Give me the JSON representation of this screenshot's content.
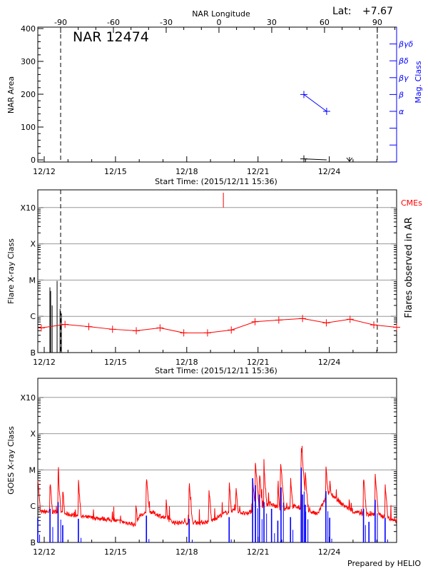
{
  "footer": "Prepared by HELIO",
  "colors": {
    "axis": "#000000",
    "mag": "#0000ff",
    "flare_rate": "#ff0000",
    "goes_long": "#ff0000",
    "goes_short": "#0000ff",
    "grid": "#999999"
  },
  "chart_data": [
    {
      "type": "line",
      "title": "NAR 12474",
      "top_axis_label": "NAR Longitude",
      "top_ticks": [
        "-90",
        "-60",
        "-30",
        "0",
        "30",
        "60",
        "90"
      ],
      "lat_label": "Lat:",
      "lat_value": "+7.67",
      "xlabel": "Start Time: (2015/12/11 15:36)",
      "x_ticks": [
        "12/12",
        "12/15",
        "12/18",
        "12/21",
        "12/24"
      ],
      "ylabel": "NAR Area",
      "ylim": [
        0,
        400
      ],
      "y_ticks": [
        "0",
        "100",
        "200",
        "300",
        "400"
      ],
      "y2label": "Mag. Class",
      "y2_ticks": [
        "α",
        "β",
        "βγ",
        "βδ",
        "βγδ"
      ],
      "limb_times": [
        "12/12 16:35",
        "12/26 00:30"
      ],
      "area_series": [
        {
          "t": "12/22 22:20",
          "v": 3
        },
        {
          "t": "12/23 21:20",
          "v": 0
        }
      ],
      "area_zero_marker": "12/24 20:25",
      "mag_series": [
        {
          "t": "12/22 22:20",
          "class": "β"
        },
        {
          "t": "12/23 21:20",
          "class": "α"
        }
      ]
    },
    {
      "type": "bar",
      "xlabel": "Start Time: (2015/12/11 15:36)",
      "x_ticks": [
        "12/12",
        "12/15",
        "12/18",
        "12/21",
        "12/24"
      ],
      "ylabel": "Flare X-ray Class",
      "y_scale": "log",
      "ylim": [
        1e-07,
        0.001
      ],
      "y_ticks": [
        "B",
        "C",
        "M",
        "X",
        "X10"
      ],
      "y2label": "Flares observed in AR",
      "cme_label": "CMEs",
      "grid": true,
      "limb_times": [
        "12/12 16:35",
        "12/26 00:30"
      ],
      "flares": [
        {
          "t": "12/12 05:45",
          "v": 6.3e-06
        },
        {
          "t": "12/12 06:30",
          "v": 5e-06
        },
        {
          "t": "12/12 08:00",
          "v": 2e-06
        },
        {
          "t": "12/12 13:00",
          "v": 9.5e-06
        },
        {
          "t": "12/12 16:00",
          "v": 1.6e-06
        },
        {
          "t": "12/12 17:20",
          "v": 1.2e-06
        }
      ],
      "cmes": [
        "12/19 13:00"
      ],
      "daily_series": [
        {
          "t": "12/11 21:00",
          "v": 4.8e-07
        },
        {
          "t": "12/12 21:00",
          "v": 6e-07
        },
        {
          "t": "12/13 21:00",
          "v": 5.2e-07
        },
        {
          "t": "12/14 21:00",
          "v": 4.4e-07
        },
        {
          "t": "12/15 21:00",
          "v": 4e-07
        },
        {
          "t": "12/16 21:00",
          "v": 4.8e-07
        },
        {
          "t": "12/17 21:00",
          "v": 3.5e-07
        },
        {
          "t": "12/18 21:00",
          "v": 3.5e-07
        },
        {
          "t": "12/19 21:00",
          "v": 4.2e-07
        },
        {
          "t": "12/20 21:00",
          "v": 7.1e-07
        },
        {
          "t": "12/21 21:00",
          "v": 7.9e-07
        },
        {
          "t": "12/22 21:00",
          "v": 8.7e-07
        },
        {
          "t": "12/23 21:00",
          "v": 6.6e-07
        },
        {
          "t": "12/24 21:00",
          "v": 8.3e-07
        },
        {
          "t": "12/25 21:00",
          "v": 5.8e-07
        },
        {
          "t": "12/26 21:00",
          "v": 5e-07
        }
      ]
    },
    {
      "type": "line",
      "x_ticks": [
        "12/12",
        "12/15",
        "12/18",
        "12/21",
        "12/24"
      ],
      "ylabel": "GOES X-ray Class",
      "y_scale": "log",
      "ylim": [
        1e-07,
        0.001
      ],
      "y_ticks": [
        "B",
        "C",
        "M",
        "X",
        "X10"
      ],
      "grid": true,
      "long_channel_background": [
        {
          "t": "12/11 16:00",
          "v": 7e-07
        },
        {
          "t": "12/12 12:00",
          "v": 7e-07
        },
        {
          "t": "12/13 00:00",
          "v": 6e-07
        },
        {
          "t": "12/13 18:00",
          "v": 5e-07
        },
        {
          "t": "12/14 12:00",
          "v": 4.5e-07
        },
        {
          "t": "12/15 12:00",
          "v": 3.5e-07
        },
        {
          "t": "12/15 21:00",
          "v": 3e-07
        },
        {
          "t": "12/16 00:00",
          "v": 5.5e-07
        },
        {
          "t": "12/16 12:00",
          "v": 7e-07
        },
        {
          "t": "12/17 00:00",
          "v": 5e-07
        },
        {
          "t": "12/17 12:00",
          "v": 3.5e-07
        },
        {
          "t": "12/18 12:00",
          "v": 3.5e-07
        },
        {
          "t": "12/19 00:00",
          "v": 3.8e-07
        },
        {
          "t": "12/19 12:00",
          "v": 6e-07
        },
        {
          "t": "12/20 00:00",
          "v": 8e-07
        },
        {
          "t": "12/20 12:00",
          "v": 6e-07
        },
        {
          "t": "12/21 00:00",
          "v": 9e-07
        },
        {
          "t": "12/21 12:00",
          "v": 1.2e-06
        },
        {
          "t": "12/22 00:00",
          "v": 8e-07
        },
        {
          "t": "12/22 12:00",
          "v": 1e-06
        },
        {
          "t": "12/23 00:00",
          "v": 8e-07
        },
        {
          "t": "12/23 12:00",
          "v": 6e-07
        },
        {
          "t": "12/24 00:00",
          "v": 2.5e-06
        },
        {
          "t": "12/24 12:00",
          "v": 1.2e-06
        },
        {
          "t": "12/25 00:00",
          "v": 7e-07
        },
        {
          "t": "12/25 12:00",
          "v": 6e-07
        },
        {
          "t": "12/26 00:00",
          "v": 6e-07
        },
        {
          "t": "12/26 20:00",
          "v": 4e-07
        }
      ],
      "long_channel_peaks": [
        {
          "t": "12/11 17:30",
          "v": 5.9e-06
        },
        {
          "t": "12/12 05:50",
          "v": 5e-06
        },
        {
          "t": "12/12 14:00",
          "v": 8e-06
        },
        {
          "t": "12/12 18:40",
          "v": 3e-06
        },
        {
          "t": "12/13 10:30",
          "v": 5e-06
        },
        {
          "t": "12/15 20:40",
          "v": 1.3e-06
        },
        {
          "t": "12/16 07:15",
          "v": 7e-06
        },
        {
          "t": "12/17 03:15",
          "v": 1.4e-06
        },
        {
          "t": "12/18 02:25",
          "v": 4.9e-06
        },
        {
          "t": "12/18 22:20",
          "v": 3.3e-06
        },
        {
          "t": "12/19 18:50",
          "v": 4.7e-06
        },
        {
          "t": "12/20 01:40",
          "v": 4e-06
        },
        {
          "t": "12/20 18:35",
          "v": 6e-06
        },
        {
          "t": "12/20 21:20",
          "v": 1.7e-05
        },
        {
          "t": "12/21 01:25",
          "v": 9e-06
        },
        {
          "t": "12/21 06:00",
          "v": 1.1e-05
        },
        {
          "t": "12/21 20:00",
          "v": 3.5e-06
        },
        {
          "t": "12/21 22:45",
          "v": 1.8e-05
        },
        {
          "t": "12/22 08:50",
          "v": 6.5e-06
        },
        {
          "t": "12/22 19:40",
          "v": 5.1e-05
        },
        {
          "t": "12/22 23:45",
          "v": 8e-06
        },
        {
          "t": "12/23 20:35",
          "v": 1.25e-05
        },
        {
          "t": "12/24 00:25",
          "v": 6e-06
        },
        {
          "t": "12/25 10:35",
          "v": 7e-06
        },
        {
          "t": "12/25 22:20",
          "v": 8e-06
        },
        {
          "t": "12/26 08:25",
          "v": 4.3e-06
        }
      ],
      "short_channel_peaks": [
        {
          "t": "12/11 17:30",
          "v": 4.8e-07
        },
        {
          "t": "12/12 05:50",
          "v": 8.5e-07
        },
        {
          "t": "12/12 14:00",
          "v": 1.3e-06
        },
        {
          "t": "12/12 18:40",
          "v": 3e-07
        },
        {
          "t": "12/13 10:30",
          "v": 4.5e-07
        },
        {
          "t": "12/16 07:15",
          "v": 5.5e-07
        },
        {
          "t": "12/18 02:25",
          "v": 4.5e-07
        },
        {
          "t": "12/19 18:50",
          "v": 5e-07
        },
        {
          "t": "12/20 18:35",
          "v": 5.9e-06
        },
        {
          "t": "12/20 21:20",
          "v": 3.8e-06
        },
        {
          "t": "12/21 01:25",
          "v": 2.1e-06
        },
        {
          "t": "12/21 06:00",
          "v": 1.3e-06
        },
        {
          "t": "12/21 13:40",
          "v": 8.5e-07
        },
        {
          "t": "12/21 20:00",
          "v": 4e-07
        },
        {
          "t": "12/21 23:15",
          "v": 3.3e-06
        },
        {
          "t": "12/22 08:50",
          "v": 5e-07
        },
        {
          "t": "12/22 19:40",
          "v": 1.17e-05
        },
        {
          "t": "12/22 21:05",
          "v": 2.1e-06
        },
        {
          "t": "12/22 23:45",
          "v": 1.1e-06
        },
        {
          "t": "12/23 20:35",
          "v": 2.6e-06
        },
        {
          "t": "12/24 00:25",
          "v": 4.8e-07
        },
        {
          "t": "12/25 10:35",
          "v": 8.5e-07
        },
        {
          "t": "12/25 16:05",
          "v": 3.7e-07
        },
        {
          "t": "12/25 22:20",
          "v": 1.5e-06
        },
        {
          "t": "12/26 08:25",
          "v": 4.8e-07
        }
      ]
    }
  ]
}
